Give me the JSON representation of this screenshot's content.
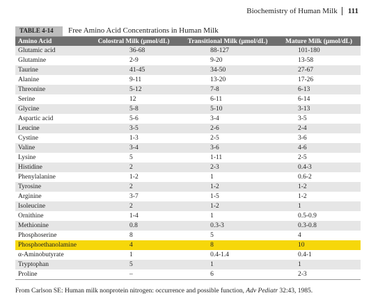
{
  "header": {
    "title": "Biochemistry of Human Milk",
    "page": "111"
  },
  "table": {
    "label": "TABLE 4-14",
    "title": "Free Amino Acid Concentrations in Human Milk",
    "columns": [
      "Amino Acid",
      "Colostral Milk (μmol/dL)",
      "Transitional Milk (μmol/dL)",
      "Mature Milk (μmol/dL)"
    ],
    "rows": [
      [
        "Glutamic acid",
        "36-68",
        "88-127",
        "101-180"
      ],
      [
        "Glutamine",
        "2-9",
        "9-20",
        "13-58"
      ],
      [
        "Taurine",
        "41-45",
        "34-50",
        "27-67"
      ],
      [
        "Alanine",
        "9-11",
        "13-20",
        "17-26"
      ],
      [
        "Threonine",
        "5-12",
        "7-8",
        "6-13"
      ],
      [
        "Serine",
        "12",
        "6-11",
        "6-14"
      ],
      [
        "Glycine",
        "5-8",
        "5-10",
        "3-13"
      ],
      [
        "Aspartic acid",
        "5-6",
        "3-4",
        "3-5"
      ],
      [
        "Leucine",
        "3-5",
        "2-6",
        "2-4"
      ],
      [
        "Cystine",
        "1-3",
        "2-5",
        "3-6"
      ],
      [
        "Valine",
        "3-4",
        "3-6",
        "4-6"
      ],
      [
        "Lysine",
        "5",
        "1-11",
        "2-5"
      ],
      [
        "Histidine",
        "2",
        "2-3",
        "0.4-3"
      ],
      [
        "Phenylalanine",
        "1-2",
        "1",
        "0.6-2"
      ],
      [
        "Tyrosine",
        "2",
        "1-2",
        "1-2"
      ],
      [
        "Arginine",
        "3-7",
        "1-5",
        "1-2"
      ],
      [
        "Isoleucine",
        "2",
        "1-2",
        "1"
      ],
      [
        "Ornithine",
        "1-4",
        "1",
        "0.5-0.9"
      ],
      [
        "Methionine",
        "0.8",
        "0.3-3",
        "0.3-0.8"
      ],
      [
        "Phosphoserine",
        "8",
        "5",
        "4"
      ],
      [
        "Phosphoethanolamine",
        "4",
        "8",
        "10"
      ],
      [
        "α-Aminobutyrate",
        "1",
        "0.4-1.4",
        "0.4-1"
      ],
      [
        "Tryptophan",
        "5",
        "1",
        "1"
      ],
      [
        "Proline",
        "–",
        "6",
        "2-3"
      ]
    ]
  },
  "footnote": {
    "before": "From Carlson SE: Human milk nonprotein nitrogen: occurrence and possible function, ",
    "journal": "Adv Pediatr",
    "after": " 32:43, 1985."
  }
}
